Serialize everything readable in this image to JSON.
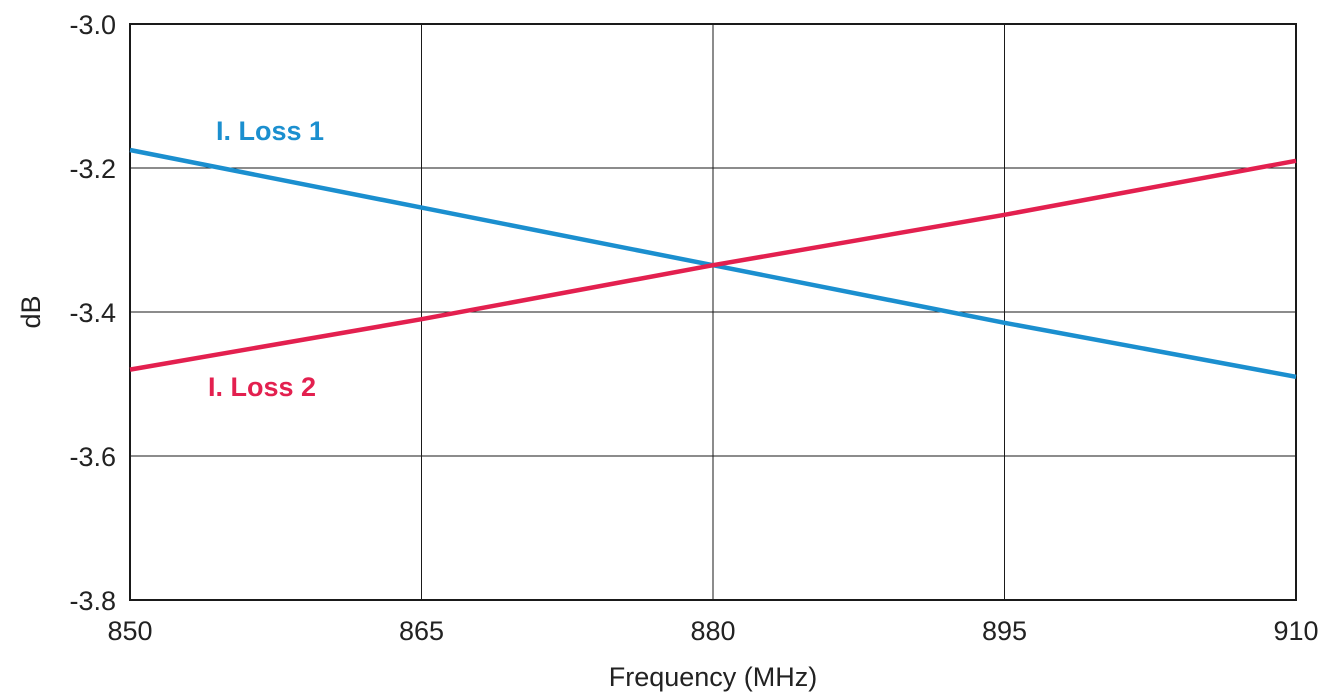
{
  "chart_data": {
    "type": "line",
    "xlabel": "Frequency (MHz)",
    "ylabel": "dB",
    "x_ticks": [
      "850",
      "865",
      "880",
      "895",
      "910"
    ],
    "y_ticks": [
      "-3.0",
      "-3.2",
      "-3.4",
      "-3.6",
      "-3.8"
    ],
    "xlim": [
      850,
      910
    ],
    "ylim": [
      -3.8,
      -3.0
    ],
    "grid": true,
    "series": [
      {
        "name": "I. Loss 1",
        "color": "#1b8fcf",
        "x": [
          850,
          865,
          880,
          895,
          910
        ],
        "y": [
          -3.175,
          -3.255,
          -3.335,
          -3.415,
          -3.49
        ]
      },
      {
        "name": "I. Loss 2",
        "color": "#e3204f",
        "x": [
          850,
          865,
          880,
          895,
          910
        ],
        "y": [
          -3.48,
          -3.41,
          -3.335,
          -3.265,
          -3.19
        ]
      }
    ]
  }
}
